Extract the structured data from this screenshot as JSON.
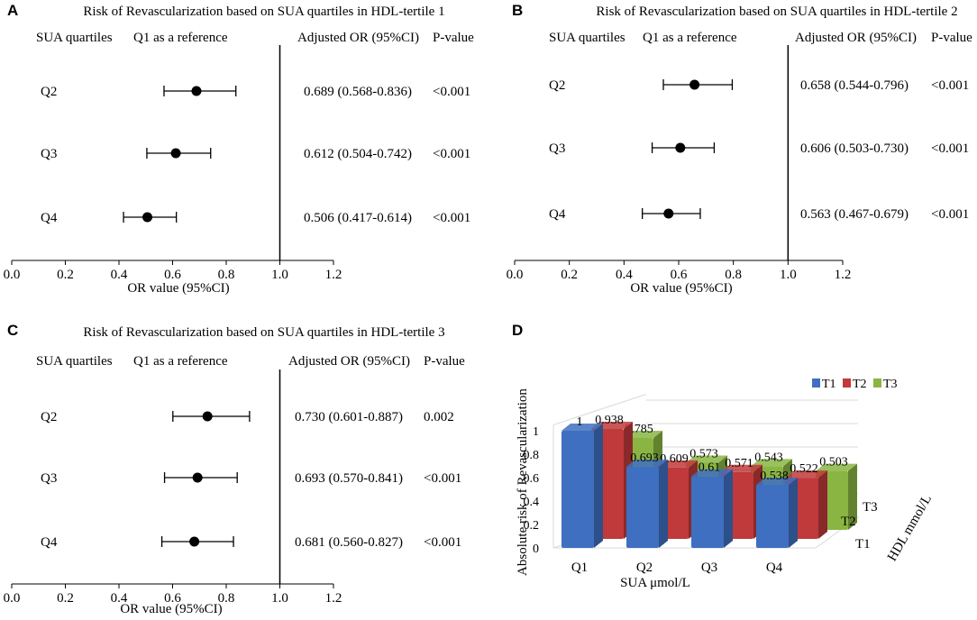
{
  "panels": [
    {
      "letter": "A",
      "title": "Risk of Revascularization based on SUA quartiles in HDL-tertile 1",
      "col_sua": "SUA quartiles",
      "col_ref": "Q1 as a reference",
      "col_or": "Adjusted OR (95%CI)",
      "col_p": "P-value",
      "rows": [
        {
          "label": "Q2",
          "or_text": "0.689 (0.568-0.836)",
          "p": "<0.001"
        },
        {
          "label": "Q3",
          "or_text": "0.612 (0.504-0.742)",
          "p": "<0.001"
        },
        {
          "label": "Q4",
          "or_text": "0.506 (0.417-0.614)",
          "p": "<0.001"
        }
      ],
      "xlabel": "OR value (95%CI)"
    },
    {
      "letter": "B",
      "title": "Risk of Revascularization based on SUA quartiles in HDL-tertile 2",
      "col_sua": "SUA quartiles",
      "col_ref": "Q1 as a reference",
      "col_or": "Adjusted OR (95%CI)",
      "col_p": "P-value",
      "rows": [
        {
          "label": "Q2",
          "or_text": "0.658 (0.544-0.796)",
          "p": "<0.001"
        },
        {
          "label": "Q3",
          "or_text": "0.606 (0.503-0.730)",
          "p": "<0.001"
        },
        {
          "label": "Q4",
          "or_text": "0.563 (0.467-0.679)",
          "p": "<0.001"
        }
      ],
      "xlabel": "OR value (95%CI)"
    },
    {
      "letter": "C",
      "title": "Risk of Revascularization based on SUA quartiles in HDL-tertile 3",
      "col_sua": "SUA quartiles",
      "col_ref": "Q1 as a reference",
      "col_or": "Adjusted OR (95%CI)",
      "col_p": "P-value",
      "rows": [
        {
          "label": "Q2",
          "or_text": "0.730 (0.601-0.887)",
          "p": "0.002"
        },
        {
          "label": "Q3",
          "or_text": "0.693 (0.570-0.841)",
          "p": "<0.001"
        },
        {
          "label": "Q4",
          "or_text": "0.681 (0.560-0.827)",
          "p": "<0.001"
        }
      ],
      "xlabel": "OR value (95%CI)"
    },
    {
      "letter": "D"
    }
  ],
  "colors": {
    "T1": "#3f6fc0",
    "T2": "#c0393b",
    "T3": "#8ab543",
    "ink": "#000000",
    "grid": "#d9d9d9"
  },
  "chart_data": [
    {
      "type": "scatter",
      "subtype": "forest",
      "panel": "A",
      "title": "Risk of Revascularization based on SUA quartiles in HDL-tertile 1",
      "xlabel": "OR value (95%CI)",
      "xlim": [
        0.0,
        1.2
      ],
      "xticks": [
        "0.0",
        "0.2",
        "0.4",
        "0.6",
        "0.8",
        "1.0",
        "1.2"
      ],
      "reference_line": 1.0,
      "categories": [
        "Q2",
        "Q3",
        "Q4"
      ],
      "or": [
        0.689,
        0.612,
        0.506
      ],
      "ci_low": [
        0.568,
        0.504,
        0.417
      ],
      "ci_high": [
        0.836,
        0.742,
        0.614
      ]
    },
    {
      "type": "scatter",
      "subtype": "forest",
      "panel": "B",
      "title": "Risk of Revascularization based on SUA quartiles in HDL-tertile 2",
      "xlabel": "OR value (95%CI)",
      "xlim": [
        0.0,
        1.2
      ],
      "xticks": [
        "0.0",
        "0.2",
        "0.4",
        "0.6",
        "0.8",
        "1.0",
        "1.2"
      ],
      "reference_line": 1.0,
      "categories": [
        "Q2",
        "Q3",
        "Q4"
      ],
      "or": [
        0.658,
        0.606,
        0.563
      ],
      "ci_low": [
        0.544,
        0.503,
        0.467
      ],
      "ci_high": [
        0.796,
        0.73,
        0.679
      ]
    },
    {
      "type": "scatter",
      "subtype": "forest",
      "panel": "C",
      "title": "Risk of Revascularization based on SUA quartiles in HDL-tertile 3",
      "xlabel": "OR value (95%CI)",
      "xlim": [
        0.0,
        1.2
      ],
      "xticks": [
        "0.0",
        "0.2",
        "0.4",
        "0.6",
        "0.8",
        "1.0",
        "1.2"
      ],
      "reference_line": 1.0,
      "categories": [
        "Q2",
        "Q3",
        "Q4"
      ],
      "or": [
        0.73,
        0.693,
        0.681
      ],
      "ci_low": [
        0.601,
        0.57,
        0.56
      ],
      "ci_high": [
        0.887,
        0.841,
        0.827
      ]
    },
    {
      "type": "bar",
      "subtype": "3d-clustered",
      "panel": "D",
      "title": "",
      "xlabel": "SUA μmol/L",
      "ylabel": "Absolute risk of Revascularization",
      "zlabel": "HDL mmol/L",
      "ylim": [
        0,
        1
      ],
      "yticks": [
        "0",
        "0.2",
        "0.4",
        "0.6",
        "0.8",
        "1"
      ],
      "categories": [
        "Q1",
        "Q2",
        "Q3",
        "Q4"
      ],
      "depth_labels": [
        "T1",
        "T2",
        "T3"
      ],
      "legend": [
        "T1",
        "T2",
        "T3"
      ],
      "legend_position": "top-right",
      "series": [
        {
          "name": "T1",
          "values": [
            1,
            0.693,
            0.61,
            0.538
          ],
          "labels": [
            "1",
            "0.693",
            "0.61",
            "0.538"
          ]
        },
        {
          "name": "T2",
          "values": [
            0.938,
            0.609,
            0.571,
            0.522
          ],
          "labels": [
            "0.938",
            "0.609",
            "0.571",
            "0.522"
          ]
        },
        {
          "name": "T3",
          "values": [
            0.785,
            0.573,
            0.543,
            0.503
          ],
          "labels": [
            "0.785",
            "0.573",
            "0.543",
            "0.503"
          ]
        }
      ]
    }
  ]
}
